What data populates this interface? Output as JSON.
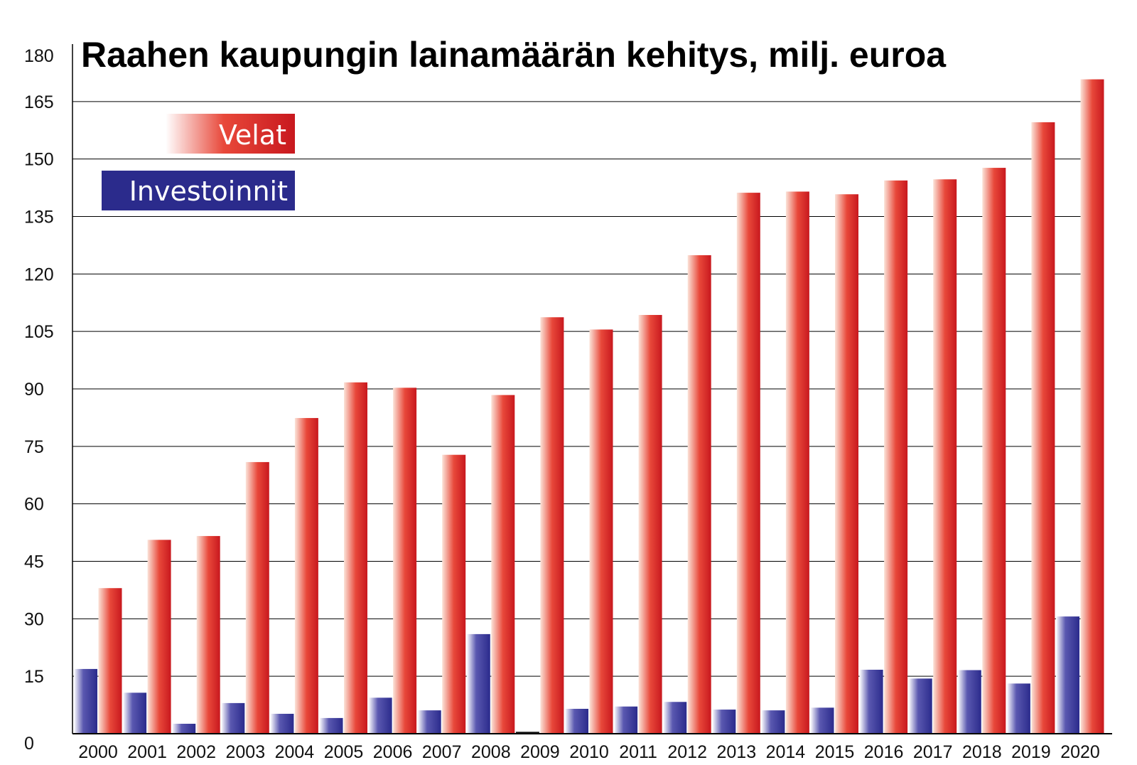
{
  "colors": {
    "velat_light": "#fbe3d8",
    "velat_mid": "#e8483a",
    "velat_dark": "#c8181e",
    "inv_light": "#ffffff",
    "inv_mid": "#5a58b0",
    "inv_dark": "#2b2b8c",
    "legend_inv": "#2b2b8c"
  },
  "chart_data": {
    "type": "bar",
    "title": "Raahen kaupungin lainamäärän kehitys, milj. euroa",
    "xlabel": "",
    "ylabel": "",
    "ylim": [
      0,
      180
    ],
    "yticks": [
      0,
      15,
      30,
      45,
      60,
      75,
      90,
      105,
      120,
      135,
      150,
      165,
      180
    ],
    "grid": true,
    "legend": "top-left",
    "categories": [
      "2000",
      "2001",
      "2002",
      "2003",
      "2004",
      "2005",
      "2006",
      "2007",
      "2008",
      "2009",
      "2010",
      "2011",
      "2012",
      "2013",
      "2014",
      "2015",
      "2016",
      "2017",
      "2018",
      "2019",
      "2020"
    ],
    "series": [
      {
        "name": "Investoinnit",
        "values": [
          16.9,
          10.7,
          2.6,
          8.0,
          5.2,
          4.1,
          9.4,
          6.1,
          26.0,
          0.5,
          6.5,
          7.1,
          8.3,
          6.3,
          6.1,
          6.8,
          16.7,
          14.4,
          16.6,
          13.1,
          30.6
        ]
      },
      {
        "name": "Velat",
        "values": [
          38.0,
          50.6,
          51.6,
          70.9,
          82.4,
          91.7,
          90.3,
          72.8,
          88.4,
          108.7,
          105.5,
          109.3,
          124.9,
          141.2,
          141.5,
          140.8,
          144.4,
          144.7,
          147.7,
          159.6,
          170.8
        ]
      }
    ]
  }
}
